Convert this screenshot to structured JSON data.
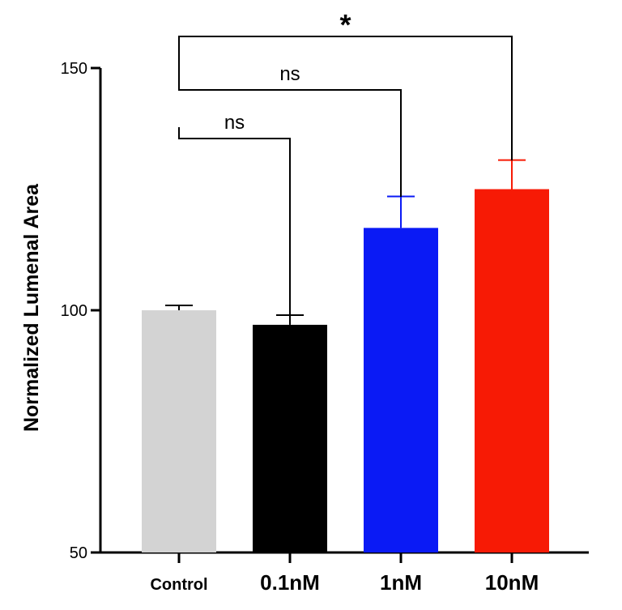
{
  "chart_data": {
    "type": "bar",
    "title": "",
    "xlabel": "",
    "ylabel": "Normalized Lumenal Area",
    "ylim": [
      50,
      150
    ],
    "yticks": [
      50,
      100,
      150
    ],
    "categories": [
      "Control",
      "0.1nM",
      "1nM",
      "10nM"
    ],
    "values": [
      100,
      97,
      117,
      125
    ],
    "errors": [
      1,
      2,
      6.5,
      6
    ],
    "colors": [
      "#d3d3d3",
      "#000000",
      "#0a1af5",
      "#f71a05"
    ],
    "comparisons": [
      {
        "from": 0,
        "to": 1,
        "label": "ns"
      },
      {
        "from": 0,
        "to": 2,
        "label": "ns"
      },
      {
        "from": 0,
        "to": 3,
        "label": "*"
      }
    ]
  }
}
